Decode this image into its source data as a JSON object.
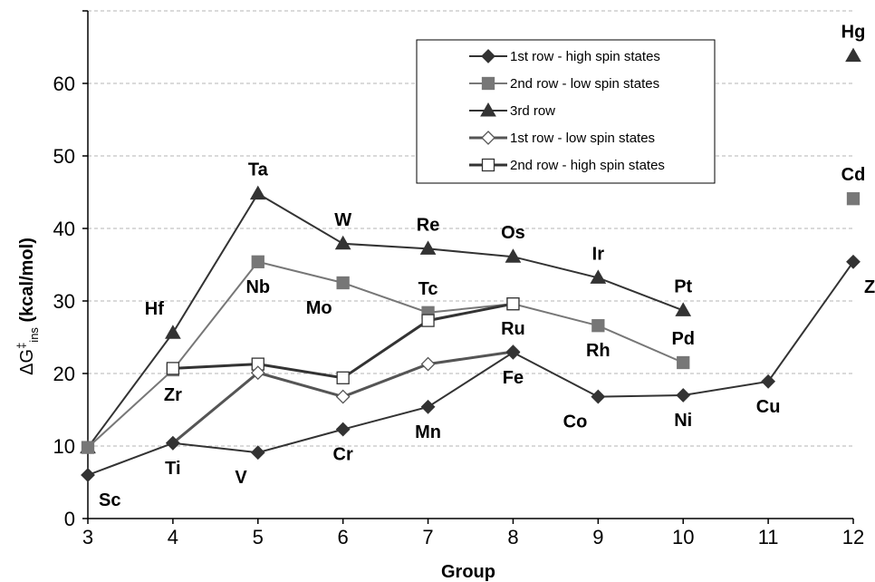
{
  "chart_data": {
    "type": "line",
    "xlabel": "Group",
    "ylabel_main": "ΔG",
    "ylabel_sup": "‡",
    "ylabel_sub": "ins",
    "ylabel_unit": " (kcal/mol)",
    "xlim": [
      3,
      12
    ],
    "ylim": [
      0,
      70
    ],
    "x_ticks": [
      3,
      4,
      5,
      6,
      7,
      8,
      9,
      10,
      11,
      12
    ],
    "y_ticks": [
      0,
      10,
      20,
      30,
      40,
      50,
      60
    ],
    "grid": "horizontal dashed",
    "legend_position": "top-right",
    "colors": {
      "dark": "#333333",
      "gray": "#777777",
      "axis": "#000000",
      "grid": "#b5b5b5"
    },
    "series": [
      {
        "name": "1st row - high spin states",
        "marker": "diamond-filled",
        "color": "#333333",
        "points": [
          {
            "x": 3,
            "y": 6.0
          },
          {
            "x": 4,
            "y": 10.4
          },
          {
            "x": 5,
            "y": 9.1
          },
          {
            "x": 6,
            "y": 12.3
          },
          {
            "x": 7,
            "y": 15.4
          },
          {
            "x": 8,
            "y": 22.9
          },
          {
            "x": 9,
            "y": 16.8
          },
          {
            "x": 10,
            "y": 17.0
          },
          {
            "x": 11,
            "y": 18.9
          },
          {
            "x": 12,
            "y": 35.4
          }
        ]
      },
      {
        "name": "2nd row - low spin states",
        "marker": "square-filled",
        "color": "#777777",
        "points": [
          {
            "x": 3,
            "y": 9.8
          },
          {
            "x": 4,
            "y": 20.5
          },
          {
            "x": 5,
            "y": 35.4
          },
          {
            "x": 6,
            "y": 32.5
          },
          {
            "x": 7,
            "y": 28.4
          },
          {
            "x": 8,
            "y": 29.6
          },
          {
            "x": 9,
            "y": 26.6
          },
          {
            "x": 10,
            "y": 21.5
          }
        ],
        "extra_points": [
          {
            "x": 12,
            "y": 44.1
          }
        ]
      },
      {
        "name": "3rd row",
        "marker": "triangle-filled",
        "color": "#333333",
        "points": [
          {
            "x": 3,
            "y": 9.8
          },
          {
            "x": 4,
            "y": 25.6
          },
          {
            "x": 5,
            "y": 44.8
          },
          {
            "x": 6,
            "y": 37.9
          },
          {
            "x": 7,
            "y": 37.2
          },
          {
            "x": 8,
            "y": 36.1
          },
          {
            "x": 9,
            "y": 33.2
          },
          {
            "x": 10,
            "y": 28.7
          }
        ],
        "extra_points": [
          {
            "x": 12,
            "y": 63.8
          }
        ]
      },
      {
        "name": "1st row - low spin states",
        "marker": "diamond-open",
        "color": "#555555",
        "points": [
          {
            "x": 4,
            "y": 10.4
          },
          {
            "x": 5,
            "y": 20.1
          },
          {
            "x": 6,
            "y": 16.8
          },
          {
            "x": 7,
            "y": 21.3
          },
          {
            "x": 8,
            "y": 23.0
          }
        ]
      },
      {
        "name": "2nd row - high spin states",
        "marker": "square-open",
        "color": "#333333",
        "points": [
          {
            "x": 4,
            "y": 20.7
          },
          {
            "x": 5,
            "y": 21.3
          },
          {
            "x": 6,
            "y": 19.4
          },
          {
            "x": 7,
            "y": 27.3
          },
          {
            "x": 8,
            "y": 29.6
          }
        ]
      }
    ],
    "element_labels": [
      {
        "text": "Sc",
        "x": 3,
        "y": 6.0,
        "pos": "below-right"
      },
      {
        "text": "Ti",
        "x": 4,
        "y": 10.4,
        "pos": "below"
      },
      {
        "text": "V",
        "x": 5,
        "y": 9.1,
        "pos": "below-left"
      },
      {
        "text": "Cr",
        "x": 6,
        "y": 12.3,
        "pos": "below"
      },
      {
        "text": "Mn",
        "x": 7,
        "y": 15.4,
        "pos": "below"
      },
      {
        "text": "Fe",
        "x": 8,
        "y": 22.9,
        "pos": "below"
      },
      {
        "text": "Co",
        "x": 9,
        "y": 16.8,
        "pos": "below-left"
      },
      {
        "text": "Ni",
        "x": 10,
        "y": 17.0,
        "pos": "below"
      },
      {
        "text": "Cu",
        "x": 11,
        "y": 18.9,
        "pos": "below"
      },
      {
        "text": "Zn",
        "x": 12,
        "y": 35.4,
        "pos": "below-right"
      },
      {
        "text": "Zr",
        "x": 4,
        "y": 20.5,
        "pos": "below"
      },
      {
        "text": "Nb",
        "x": 5,
        "y": 35.4,
        "pos": "below"
      },
      {
        "text": "Mo",
        "x": 6,
        "y": 32.5,
        "pos": "below-left"
      },
      {
        "text": "Tc",
        "x": 7,
        "y": 28.4,
        "pos": "above"
      },
      {
        "text": "Ru",
        "x": 8,
        "y": 29.6,
        "pos": "below"
      },
      {
        "text": "Rh",
        "x": 9,
        "y": 26.6,
        "pos": "below"
      },
      {
        "text": "Pd",
        "x": 10,
        "y": 21.5,
        "pos": "above"
      },
      {
        "text": "Cd",
        "x": 12,
        "y": 44.1,
        "pos": "above"
      },
      {
        "text": "Hf",
        "x": 4,
        "y": 25.6,
        "pos": "above-left"
      },
      {
        "text": "Ta",
        "x": 5,
        "y": 44.8,
        "pos": "above"
      },
      {
        "text": "W",
        "x": 6,
        "y": 37.9,
        "pos": "above"
      },
      {
        "text": "Re",
        "x": 7,
        "y": 37.2,
        "pos": "above"
      },
      {
        "text": "Os",
        "x": 8,
        "y": 36.1,
        "pos": "above"
      },
      {
        "text": "Ir",
        "x": 9,
        "y": 33.2,
        "pos": "above"
      },
      {
        "text": "Pt",
        "x": 10,
        "y": 28.7,
        "pos": "above"
      },
      {
        "text": "Hg",
        "x": 12,
        "y": 63.8,
        "pos": "above"
      }
    ]
  }
}
